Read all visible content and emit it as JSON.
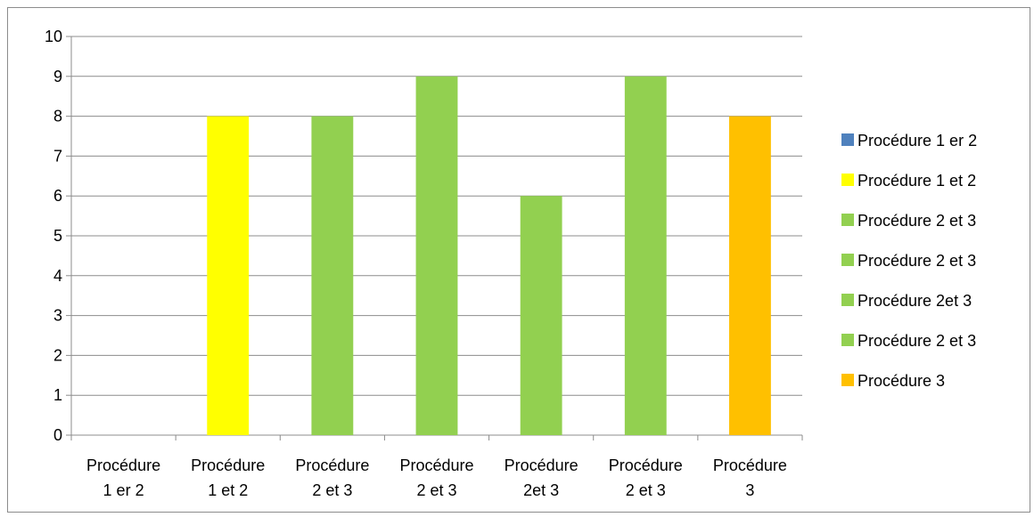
{
  "chart_data": {
    "type": "bar",
    "categories": [
      [
        "Procédure",
        "1 er 2"
      ],
      [
        "Procédure",
        "1 et 2"
      ],
      [
        "Procédure",
        "2 et 3"
      ],
      [
        "Procédure",
        "2 et 3"
      ],
      [
        "Procédure",
        "2et 3"
      ],
      [
        "Procédure",
        "2 et 3"
      ],
      [
        "Procédure",
        "3"
      ]
    ],
    "values": [
      0,
      8,
      8,
      9,
      6,
      9,
      8
    ],
    "colors": [
      "#4f81bd",
      "#ffff00",
      "#92d050",
      "#92d050",
      "#92d050",
      "#92d050",
      "#ffc000"
    ],
    "legend": [
      {
        "label": "Procédure 1 er 2",
        "color": "#4f81bd"
      },
      {
        "label": "Procédure 1 et 2",
        "color": "#ffff00"
      },
      {
        "label": "Procédure 2 et 3",
        "color": "#92d050"
      },
      {
        "label": "Procédure 2 et 3",
        "color": "#92d050"
      },
      {
        "label": "Procédure 2et 3",
        "color": "#92d050"
      },
      {
        "label": "Procédure 2 et 3",
        "color": "#92d050"
      },
      {
        "label": "Procédure 3",
        "color": "#ffc000"
      }
    ],
    "ylim": [
      0,
      10
    ],
    "yticks": [
      "0",
      "1",
      "2",
      "3",
      "4",
      "5",
      "6",
      "7",
      "8",
      "9",
      "10"
    ],
    "grid": true,
    "legend_position": "right",
    "title": "",
    "xlabel": "",
    "ylabel": ""
  }
}
